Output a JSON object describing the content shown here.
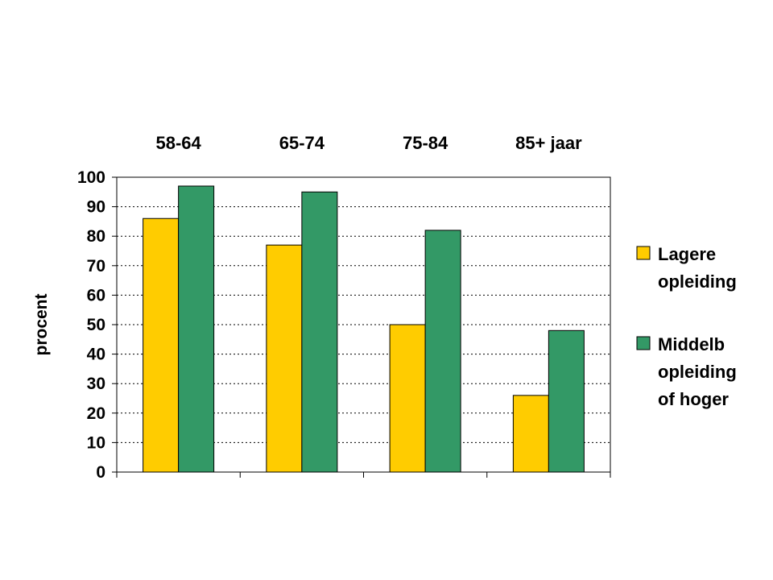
{
  "chart_data": {
    "type": "bar",
    "categories": [
      "58-64",
      "65-74",
      "75-84",
      "85+ jaar"
    ],
    "series": [
      {
        "name": "Lagere opleiding",
        "legend_lines": [
          "Lagere",
          "opleiding"
        ],
        "color": "#FFCC00",
        "values": [
          86,
          77,
          50,
          26
        ]
      },
      {
        "name": "Middelb opleiding of hoger",
        "legend_lines": [
          "Middelb",
          "opleiding",
          "of hoger"
        ],
        "color": "#339966",
        "values": [
          97,
          95,
          82,
          48
        ]
      }
    ],
    "ylabel": "procent",
    "ylim": [
      0,
      100
    ],
    "yticks": [
      0,
      10,
      20,
      30,
      40,
      50,
      60,
      70,
      80,
      90,
      100
    ],
    "grid": "horizontal-dotted",
    "legend_position": "right",
    "category_labels_position": "top"
  }
}
